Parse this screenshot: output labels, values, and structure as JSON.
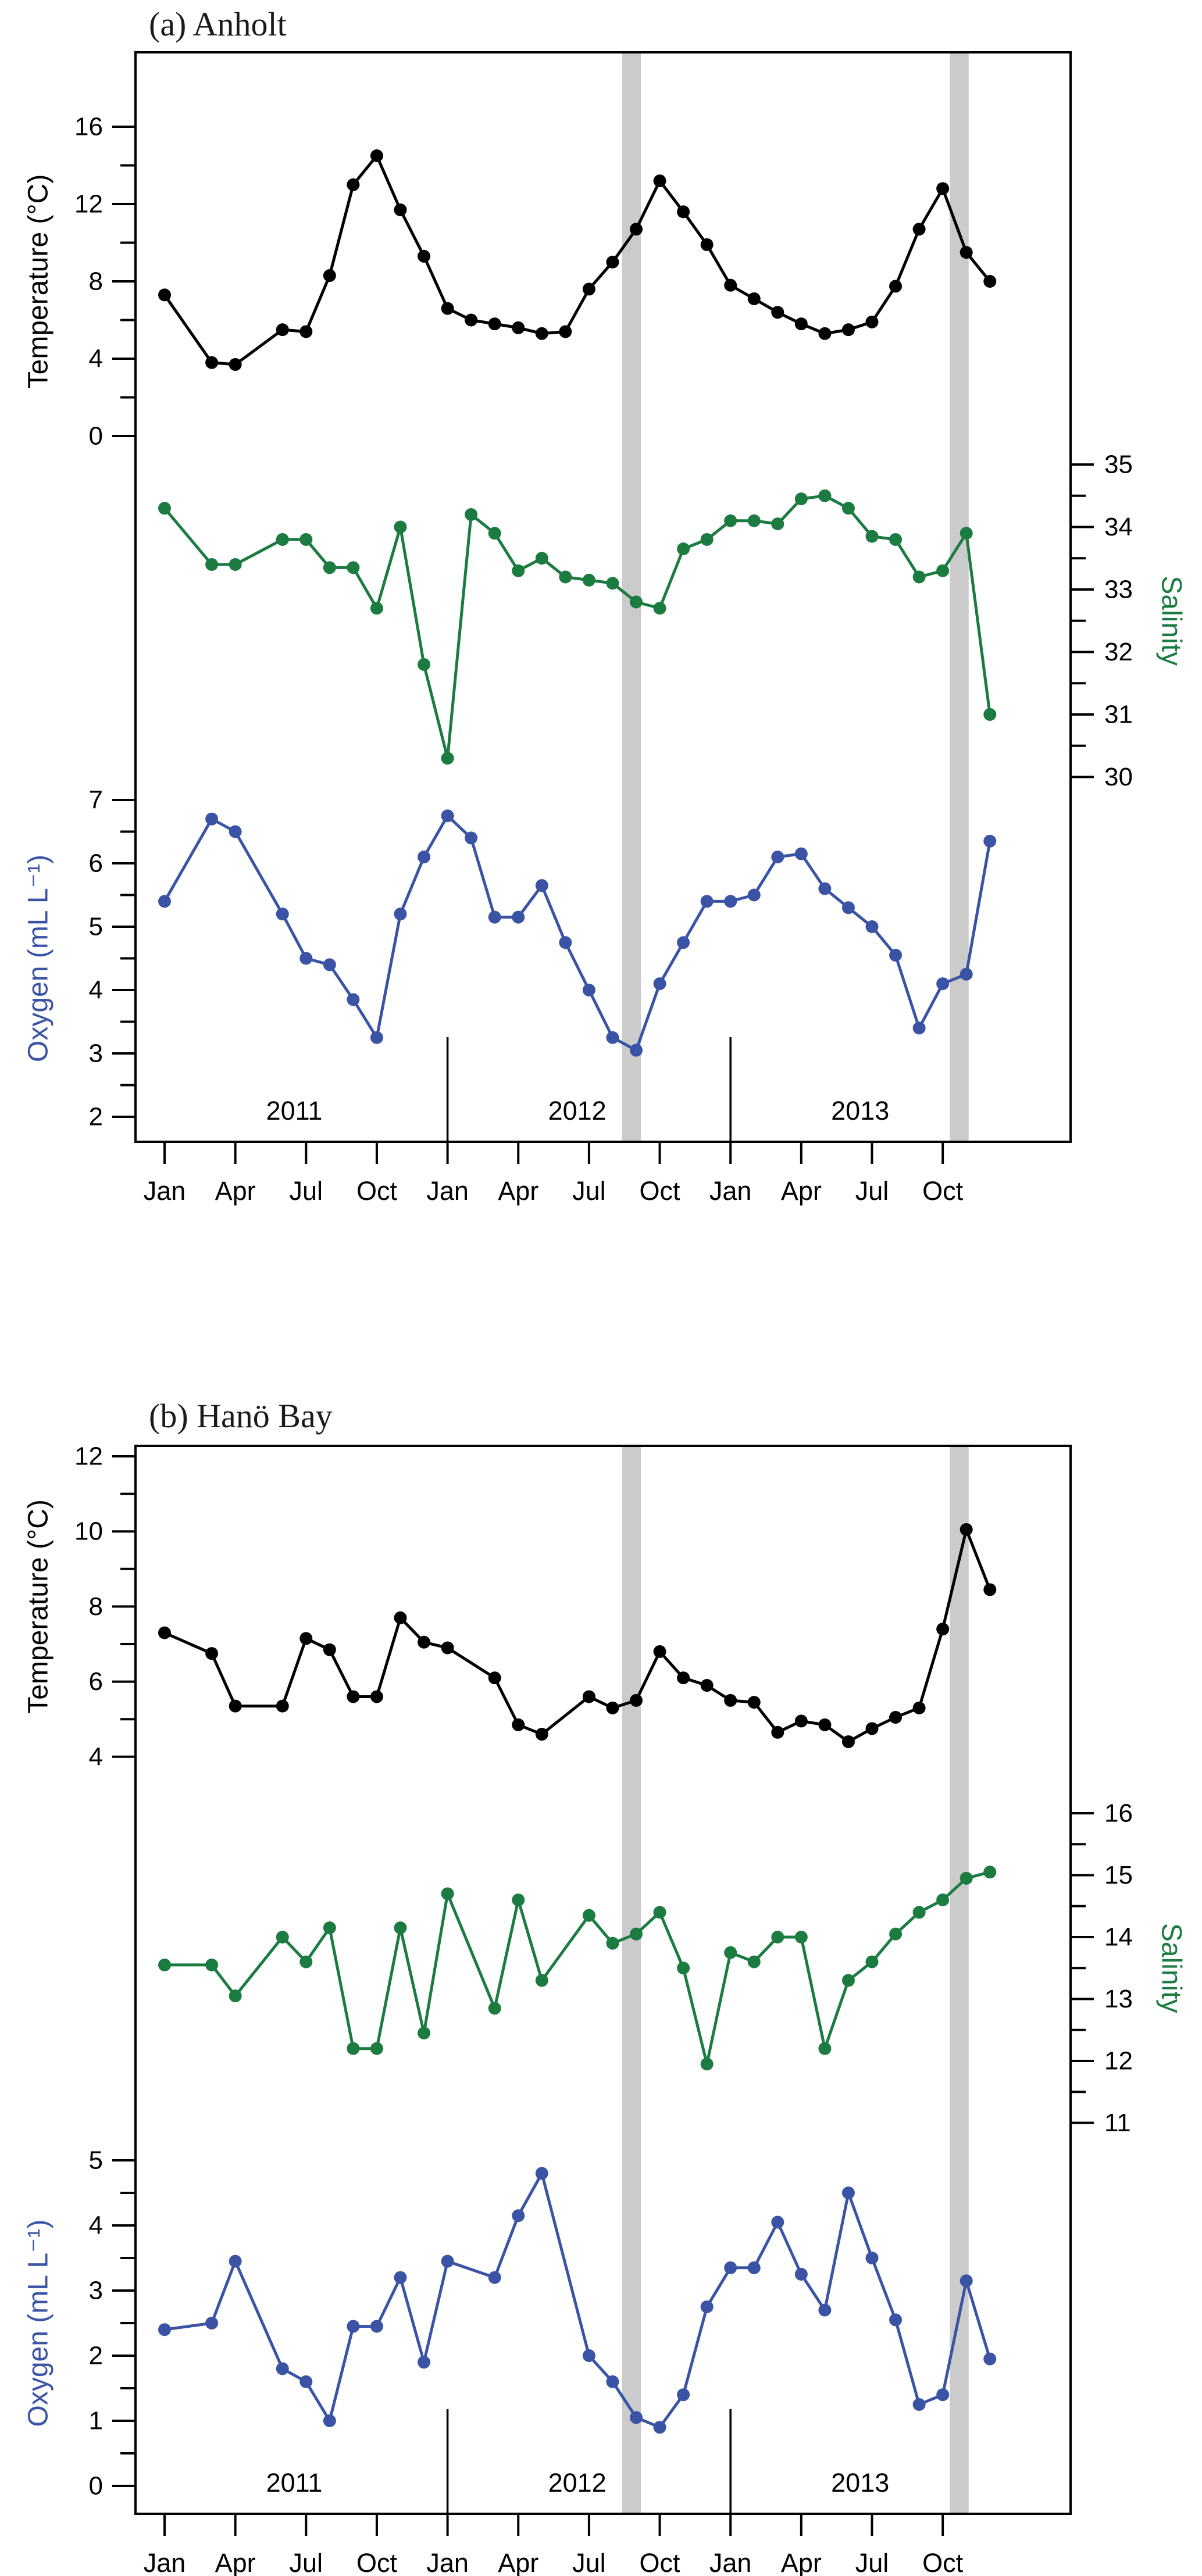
{
  "page": {
    "background": "#ffffff",
    "colors": {
      "temperature": "#000000",
      "salinity": "#1b7b41",
      "oxygen": "#3a53a5",
      "shaded_band": "#cbcbcb",
      "axis": "#000000"
    }
  },
  "chart_data": [
    {
      "id": "panel-a",
      "type": "line",
      "title": "(a) Anholt",
      "x_unit": "months since Jan 2011",
      "x_tick_months": [
        0,
        3,
        6,
        9,
        12,
        15,
        18,
        21,
        24,
        27,
        30,
        33
      ],
      "x_tick_labels": [
        "Jan",
        "Apr",
        "Jul",
        "Oct",
        "Jan",
        "Apr",
        "Jul",
        "Oct",
        "Jan",
        "Apr",
        "Jul",
        "Oct"
      ],
      "year_labels": [
        {
          "text": "2011",
          "month": 5.5
        },
        {
          "text": "2012",
          "month": 17.5
        },
        {
          "text": "2013",
          "month": 29.5
        }
      ],
      "year_separator_months": [
        12,
        24
      ],
      "shaded_bands_months": [
        [
          19.4,
          20.2
        ],
        [
          33.3,
          34.1
        ]
      ],
      "series": [
        {
          "name": "Temperature",
          "axis_label": "Temperature (°C)",
          "side": "left",
          "color": "#000000",
          "ticks": [
            0,
            2,
            4,
            6,
            8,
            10,
            12,
            14,
            16
          ],
          "labeled_ticks": [
            0,
            4,
            8,
            12,
            16
          ],
          "ylim": [
            0,
            16
          ],
          "x": [
            0,
            2,
            3,
            5,
            6,
            7,
            8,
            9,
            10,
            11,
            12,
            13,
            14,
            15,
            16,
            17,
            18,
            19,
            20,
            21,
            22,
            23,
            24,
            25,
            26,
            27,
            28,
            29,
            30,
            31,
            32,
            33,
            34,
            35
          ],
          "values": [
            7.3,
            3.8,
            3.7,
            5.5,
            5.4,
            8.3,
            13.0,
            14.5,
            11.7,
            9.3,
            6.6,
            6.0,
            5.8,
            5.6,
            5.3,
            5.4,
            7.6,
            9.0,
            10.7,
            13.2,
            11.6,
            9.9,
            7.8,
            7.1,
            6.4,
            5.8,
            5.3,
            5.5,
            5.9,
            7.75,
            10.7,
            12.8,
            9.5,
            8.0
          ]
        },
        {
          "name": "Salinity",
          "axis_label": "Salinity",
          "side": "right",
          "color": "#1b7b41",
          "ticks": [
            30,
            30.5,
            31,
            31.5,
            32,
            32.5,
            33,
            33.5,
            34,
            34.5,
            35
          ],
          "labeled_ticks": [
            30,
            31,
            32,
            33,
            34,
            35
          ],
          "ylim": [
            30,
            35
          ],
          "x": [
            0,
            2,
            3,
            5,
            6,
            7,
            8,
            9,
            10,
            11,
            12,
            13,
            14,
            15,
            16,
            17,
            18,
            19,
            20,
            21,
            22,
            23,
            24,
            25,
            26,
            27,
            28,
            29,
            30,
            31,
            32,
            33,
            34,
            35
          ],
          "values": [
            34.3,
            33.4,
            33.4,
            33.8,
            33.8,
            33.35,
            33.35,
            32.7,
            34.0,
            31.8,
            30.3,
            34.2,
            33.9,
            33.3,
            33.5,
            33.2,
            33.15,
            33.1,
            32.8,
            32.7,
            33.65,
            33.8,
            34.1,
            34.1,
            34.05,
            34.45,
            34.5,
            34.3,
            33.85,
            33.8,
            33.2,
            33.3,
            33.9,
            31.0
          ]
        },
        {
          "name": "Oxygen",
          "axis_label": "Oxygen (mL L⁻¹)",
          "side": "left",
          "color": "#3a53a5",
          "ticks": [
            2,
            2.5,
            3,
            3.5,
            4,
            4.5,
            5,
            5.5,
            6,
            6.5,
            7
          ],
          "labeled_ticks": [
            2,
            3,
            4,
            5,
            6,
            7
          ],
          "ylim": [
            2,
            7
          ],
          "x": [
            0,
            2,
            3,
            5,
            6,
            7,
            8,
            9,
            10,
            11,
            12,
            13,
            14,
            15,
            16,
            17,
            18,
            19,
            20,
            21,
            22,
            23,
            24,
            25,
            26,
            27,
            28,
            29,
            30,
            31,
            32,
            33,
            34,
            35
          ],
          "values": [
            5.4,
            6.7,
            6.5,
            5.2,
            4.5,
            4.4,
            3.85,
            3.25,
            5.2,
            6.1,
            6.75,
            6.4,
            5.15,
            5.15,
            5.65,
            4.75,
            4.0,
            3.25,
            3.05,
            4.1,
            4.75,
            5.4,
            5.4,
            5.5,
            6.1,
            6.15,
            5.6,
            5.3,
            5.0,
            4.55,
            3.4,
            4.1,
            4.25,
            6.35
          ]
        }
      ]
    },
    {
      "id": "panel-b",
      "type": "line",
      "title": "(b) Hanö Bay",
      "x_unit": "months since Jan 2011",
      "x_tick_months": [
        0,
        3,
        6,
        9,
        12,
        15,
        18,
        21,
        24,
        27,
        30,
        33
      ],
      "x_tick_labels": [
        "Jan",
        "Apr",
        "Jul",
        "Oct",
        "Jan",
        "Apr",
        "Jul",
        "Oct",
        "Jan",
        "Apr",
        "Jul",
        "Oct"
      ],
      "year_labels": [
        {
          "text": "2011",
          "month": 5.5
        },
        {
          "text": "2012",
          "month": 17.5
        },
        {
          "text": "2013",
          "month": 29.5
        }
      ],
      "year_separator_months": [
        12,
        24
      ],
      "shaded_bands_months": [
        [
          19.4,
          20.2
        ],
        [
          33.3,
          34.1
        ]
      ],
      "series": [
        {
          "name": "Temperature",
          "axis_label": "Temperature (°C)",
          "side": "left",
          "color": "#000000",
          "ticks": [
            4,
            5,
            6,
            7,
            8,
            9,
            10,
            11,
            12
          ],
          "labeled_ticks": [
            4,
            6,
            8,
            10,
            12
          ],
          "ylim": [
            4,
            12
          ],
          "x": [
            0,
            2,
            3,
            5,
            6,
            7,
            8,
            9,
            10,
            11,
            12,
            14,
            15,
            16,
            18,
            19,
            20,
            21,
            22,
            23,
            24,
            25,
            26,
            27,
            28,
            29,
            30,
            31,
            32,
            33,
            34,
            35
          ],
          "values": [
            7.3,
            6.75,
            5.35,
            5.35,
            7.15,
            6.85,
            5.6,
            5.6,
            7.7,
            7.05,
            6.9,
            6.1,
            4.85,
            4.6,
            5.6,
            5.3,
            5.5,
            6.8,
            6.1,
            5.9,
            5.5,
            5.45,
            4.65,
            4.95,
            4.85,
            4.4,
            4.75,
            5.05,
            5.3,
            7.4,
            10.05,
            8.45
          ]
        },
        {
          "name": "Salinity",
          "axis_label": "Salinity",
          "side": "right",
          "color": "#1b7b41",
          "ticks": [
            11,
            11.5,
            12,
            12.5,
            13,
            13.5,
            14,
            14.5,
            15,
            15.5,
            16
          ],
          "labeled_ticks": [
            11,
            12,
            13,
            14,
            15,
            16
          ],
          "ylim": [
            11,
            16
          ],
          "x": [
            0,
            2,
            3,
            5,
            6,
            7,
            8,
            9,
            10,
            11,
            12,
            14,
            15,
            16,
            18,
            19,
            20,
            21,
            22,
            23,
            24,
            25,
            26,
            27,
            28,
            29,
            30,
            31,
            32,
            33,
            34,
            35
          ],
          "values": [
            13.55,
            13.55,
            13.05,
            14.0,
            13.6,
            14.15,
            12.2,
            12.2,
            14.15,
            12.45,
            14.7,
            12.85,
            14.6,
            13.3,
            14.35,
            13.9,
            14.05,
            14.4,
            13.5,
            11.95,
            13.75,
            13.6,
            14.0,
            14.0,
            12.2,
            13.3,
            13.6,
            14.05,
            14.4,
            14.6,
            14.95,
            15.05
          ]
        },
        {
          "name": "Oxygen",
          "axis_label": "Oxygen (mL L⁻¹)",
          "side": "left",
          "color": "#3a53a5",
          "ticks": [
            0,
            0.5,
            1,
            1.5,
            2,
            2.5,
            3,
            3.5,
            4,
            4.5,
            5
          ],
          "labeled_ticks": [
            0,
            1,
            2,
            3,
            4,
            5
          ],
          "ylim": [
            0,
            5
          ],
          "x": [
            0,
            2,
            3,
            5,
            6,
            7,
            8,
            9,
            10,
            11,
            12,
            14,
            15,
            16,
            18,
            19,
            20,
            21,
            22,
            23,
            24,
            25,
            26,
            27,
            28,
            29,
            30,
            31,
            32,
            33,
            34,
            35
          ],
          "values": [
            2.4,
            2.5,
            3.45,
            1.8,
            1.6,
            1.0,
            2.45,
            2.45,
            3.2,
            1.9,
            3.45,
            3.2,
            4.15,
            4.8,
            2.0,
            1.6,
            1.05,
            0.9,
            1.4,
            2.75,
            3.35,
            3.35,
            4.05,
            3.25,
            2.7,
            4.5,
            3.5,
            2.55,
            1.25,
            1.4,
            3.15,
            1.95
          ]
        }
      ]
    }
  ]
}
